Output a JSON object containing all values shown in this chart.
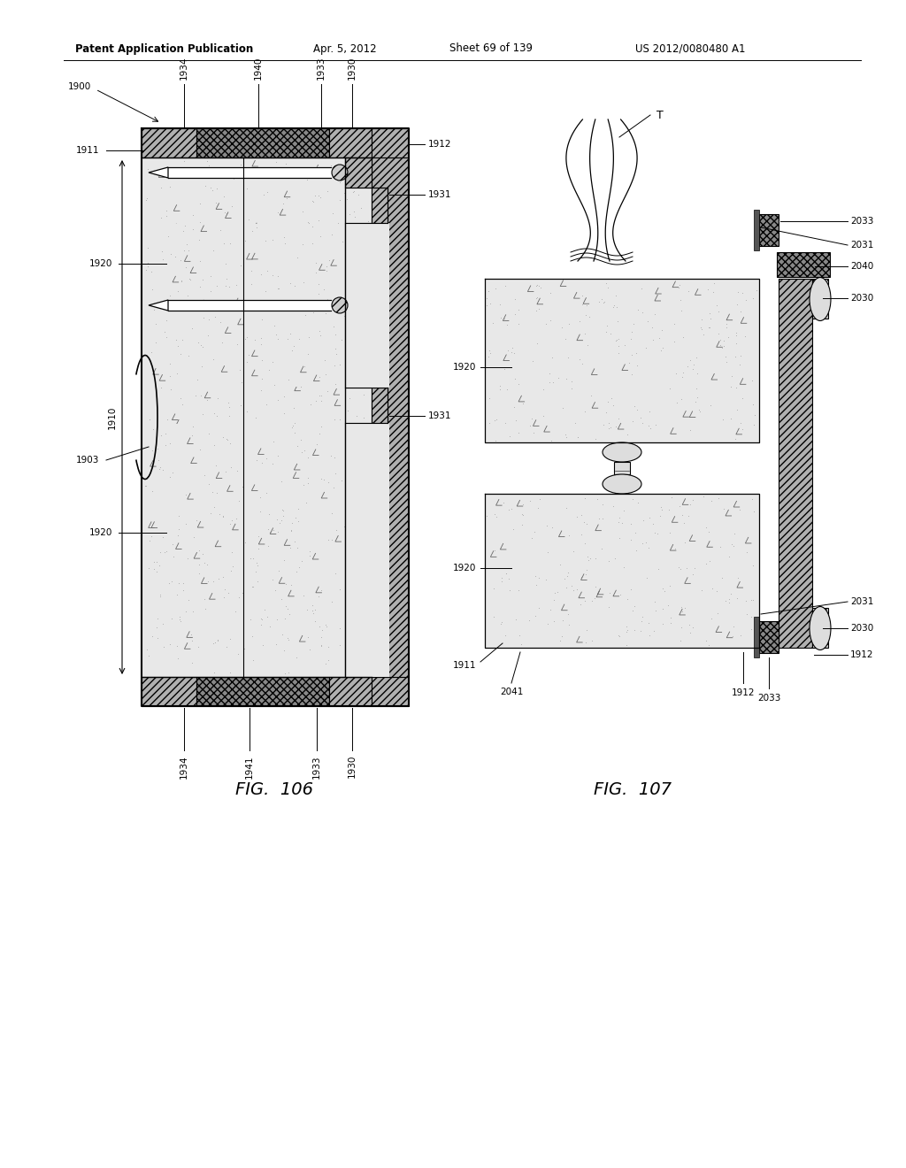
{
  "title_left": "Patent Application Publication",
  "title_mid": "Apr. 5, 2012",
  "title_sheet": "Sheet 69 of 139",
  "title_right": "US 2012/0080480 A1",
  "fig106_label": "FIG.  106",
  "fig107_label": "FIG.  107",
  "bg_color": "#ffffff"
}
